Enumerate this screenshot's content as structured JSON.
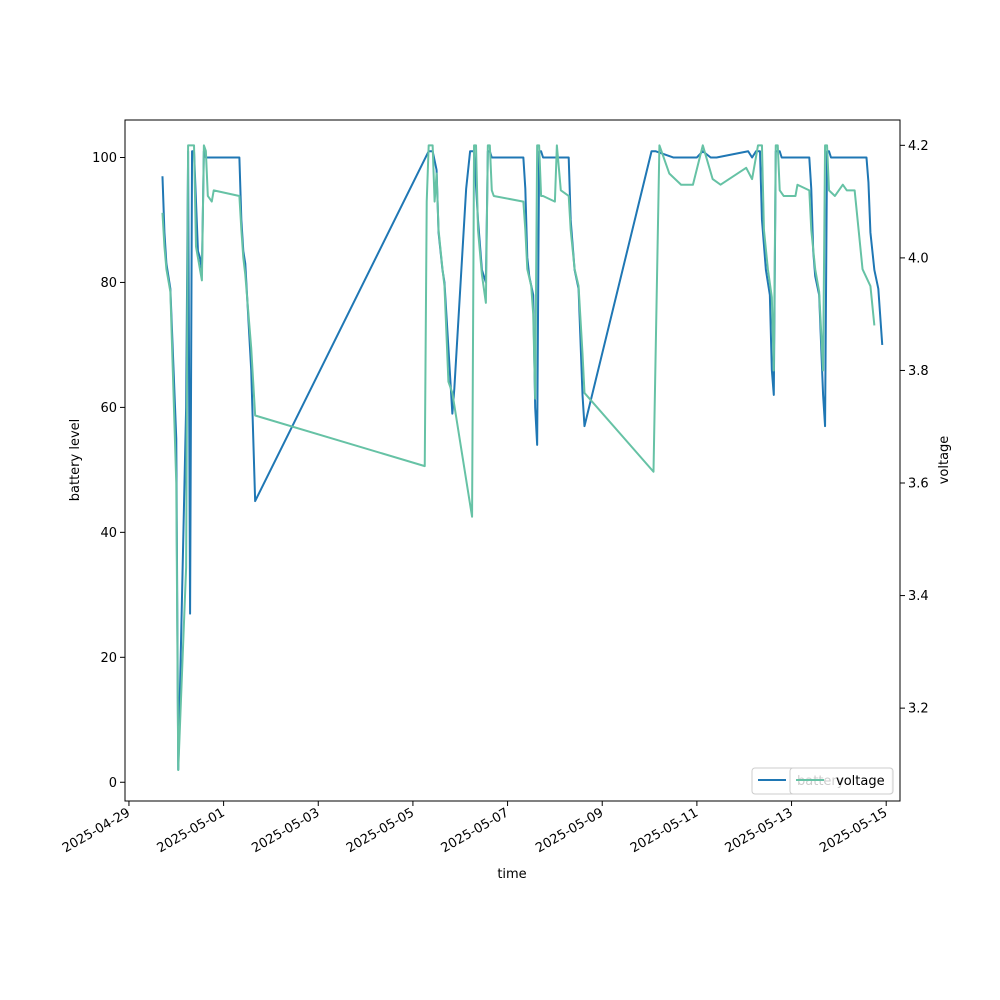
{
  "chart_data": {
    "type": "line",
    "title": "",
    "xlabel": "time",
    "ylabel_left": "battery level",
    "ylabel_right": "voltage",
    "x_range": [
      "2025-04-28T22:00",
      "2025-05-15T07:00"
    ],
    "x_ticks": [
      "2025-04-29",
      "2025-05-01",
      "2025-05-03",
      "2025-05-05",
      "2025-05-07",
      "2025-05-09",
      "2025-05-11",
      "2025-05-13",
      "2025-05-15"
    ],
    "ylim_left": [
      -3,
      106
    ],
    "yticks_left": [
      0,
      20,
      40,
      60,
      80,
      100
    ],
    "ylim_right": [
      3.035,
      4.245
    ],
    "yticks_right": [
      3.2,
      3.4,
      3.6,
      3.8,
      4.0,
      4.2
    ],
    "legend_position": "lower right",
    "series": [
      {
        "name": "battery",
        "axis": "left",
        "color": "#1f77b4",
        "points": [
          [
            "2025-04-29T17:00",
            97
          ],
          [
            "2025-04-29T18:00",
            88
          ],
          [
            "2025-04-29T19:00",
            83
          ],
          [
            "2025-04-29T21:00",
            79
          ],
          [
            "2025-04-30T00:00",
            55
          ],
          [
            "2025-04-30T01:00",
            2
          ],
          [
            "2025-04-30T05:00",
            60
          ],
          [
            "2025-04-30T06:00",
            101
          ],
          [
            "2025-04-30T07:00",
            27
          ],
          [
            "2025-04-30T08:00",
            101
          ],
          [
            "2025-04-30T09:00",
            101
          ],
          [
            "2025-04-30T11:00",
            85
          ],
          [
            "2025-04-30T12:00",
            84
          ],
          [
            "2025-04-30T13:00",
            82
          ],
          [
            "2025-04-30T14:00",
            101
          ],
          [
            "2025-04-30T15:00",
            100
          ],
          [
            "2025-04-30T16:00",
            100
          ],
          [
            "2025-05-01T08:00",
            100
          ],
          [
            "2025-05-01T09:00",
            90
          ],
          [
            "2025-05-01T10:00",
            85
          ],
          [
            "2025-05-01T11:00",
            83
          ],
          [
            "2025-05-01T14:00",
            66
          ],
          [
            "2025-05-01T16:00",
            45
          ],
          [
            "2025-05-05T08:00",
            101
          ],
          [
            "2025-05-05T10:00",
            101
          ],
          [
            "2025-05-05T12:00",
            98
          ],
          [
            "2025-05-05T13:00",
            88
          ],
          [
            "2025-05-05T15:00",
            82
          ],
          [
            "2025-05-05T16:00",
            80
          ],
          [
            "2025-05-05T20:00",
            59
          ],
          [
            "2025-05-05T21:00",
            63
          ],
          [
            "2025-05-06T03:00",
            95
          ],
          [
            "2025-05-06T05:00",
            101
          ],
          [
            "2025-05-06T07:00",
            101
          ],
          [
            "2025-05-06T09:00",
            90
          ],
          [
            "2025-05-06T11:00",
            82
          ],
          [
            "2025-05-06T13:00",
            80
          ],
          [
            "2025-05-06T14:00",
            101
          ],
          [
            "2025-05-06T15:00",
            101
          ],
          [
            "2025-05-06T16:00",
            100
          ],
          [
            "2025-05-07T08:00",
            100
          ],
          [
            "2025-05-07T09:00",
            95
          ],
          [
            "2025-05-07T10:00",
            84
          ],
          [
            "2025-05-07T11:00",
            81
          ],
          [
            "2025-05-07T13:00",
            78
          ],
          [
            "2025-05-07T14:00",
            60
          ],
          [
            "2025-05-07T15:00",
            54
          ],
          [
            "2025-05-07T16:00",
            101
          ],
          [
            "2025-05-07T17:00",
            101
          ],
          [
            "2025-05-07T18:00",
            100
          ],
          [
            "2025-05-08T07:00",
            100
          ],
          [
            "2025-05-08T08:00",
            90
          ],
          [
            "2025-05-08T10:00",
            82
          ],
          [
            "2025-05-08T12:00",
            79
          ],
          [
            "2025-05-08T14:00",
            62
          ],
          [
            "2025-05-08T15:00",
            57
          ],
          [
            "2025-05-10T01:00",
            101
          ],
          [
            "2025-05-10T03:00",
            101
          ],
          [
            "2025-05-10T12:00",
            100
          ],
          [
            "2025-05-11T00:00",
            100
          ],
          [
            "2025-05-11T03:00",
            101
          ],
          [
            "2025-05-11T07:00",
            100
          ],
          [
            "2025-05-11T10:00",
            100
          ],
          [
            "2025-05-12T02:00",
            101
          ],
          [
            "2025-05-12T04:00",
            100
          ],
          [
            "2025-05-12T06:00",
            101
          ],
          [
            "2025-05-12T08:00",
            101
          ],
          [
            "2025-05-12T09:00",
            90
          ],
          [
            "2025-05-12T11:00",
            82
          ],
          [
            "2025-05-12T13:00",
            78
          ],
          [
            "2025-05-12T14:00",
            66
          ],
          [
            "2025-05-12T15:00",
            62
          ],
          [
            "2025-05-12T16:00",
            101
          ],
          [
            "2025-05-12T18:00",
            101
          ],
          [
            "2025-05-12T19:00",
            100
          ],
          [
            "2025-05-13T09:00",
            100
          ],
          [
            "2025-05-13T10:00",
            95
          ],
          [
            "2025-05-13T11:00",
            85
          ],
          [
            "2025-05-13T12:00",
            81
          ],
          [
            "2025-05-13T14:00",
            78
          ],
          [
            "2025-05-13T16:00",
            62
          ],
          [
            "2025-05-13T17:00",
            57
          ],
          [
            "2025-05-13T18:00",
            101
          ],
          [
            "2025-05-13T19:00",
            101
          ],
          [
            "2025-05-13T20:00",
            100
          ],
          [
            "2025-05-14T14:00",
            100
          ],
          [
            "2025-05-14T15:00",
            96
          ],
          [
            "2025-05-14T16:00",
            88
          ],
          [
            "2025-05-14T18:00",
            82
          ],
          [
            "2025-05-14T20:00",
            79
          ],
          [
            "2025-05-14T22:00",
            70
          ]
        ]
      },
      {
        "name": "voltage",
        "axis": "right",
        "color": "#66c2a5",
        "points": [
          [
            "2025-04-29T17:00",
            4.08
          ],
          [
            "2025-04-29T18:00",
            4.02
          ],
          [
            "2025-04-29T19:00",
            3.98
          ],
          [
            "2025-04-29T21:00",
            3.94
          ],
          [
            "2025-04-30T00:00",
            3.6
          ],
          [
            "2025-04-30T01:00",
            3.09
          ],
          [
            "2025-04-30T05:00",
            3.45
          ],
          [
            "2025-04-30T06:00",
            4.2
          ],
          [
            "2025-04-30T08:00",
            4.2
          ],
          [
            "2025-04-30T09:00",
            4.2
          ],
          [
            "2025-04-30T10:00",
            4.02
          ],
          [
            "2025-04-30T11:00",
            4.0
          ],
          [
            "2025-04-30T13:00",
            3.96
          ],
          [
            "2025-04-30T14:00",
            4.2
          ],
          [
            "2025-04-30T15:00",
            4.19
          ],
          [
            "2025-04-30T16:00",
            4.11
          ],
          [
            "2025-04-30T18:00",
            4.1
          ],
          [
            "2025-04-30T19:00",
            4.12
          ],
          [
            "2025-05-01T08:00",
            4.11
          ],
          [
            "2025-05-01T09:00",
            4.05
          ],
          [
            "2025-05-01T10:00",
            4.0
          ],
          [
            "2025-05-01T11:00",
            3.97
          ],
          [
            "2025-05-01T14:00",
            3.84
          ],
          [
            "2025-05-01T16:00",
            3.72
          ],
          [
            "2025-05-05T06:00",
            3.63
          ],
          [
            "2025-05-05T07:00",
            4.1
          ],
          [
            "2025-05-05T08:00",
            4.2
          ],
          [
            "2025-05-05T10:00",
            4.2
          ],
          [
            "2025-05-05T11:00",
            4.1
          ],
          [
            "2025-05-05T12:00",
            4.15
          ],
          [
            "2025-05-05T13:00",
            4.05
          ],
          [
            "2025-05-05T15:00",
            3.98
          ],
          [
            "2025-05-05T16:00",
            3.95
          ],
          [
            "2025-05-05T18:00",
            3.78
          ],
          [
            "2025-05-05T20:00",
            3.76
          ],
          [
            "2025-05-06T06:00",
            3.54
          ],
          [
            "2025-05-06T07:00",
            4.2
          ],
          [
            "2025-05-06T08:00",
            4.2
          ],
          [
            "2025-05-06T09:00",
            4.05
          ],
          [
            "2025-05-06T11:00",
            3.97
          ],
          [
            "2025-05-06T13:00",
            3.92
          ],
          [
            "2025-05-06T14:00",
            4.2
          ],
          [
            "2025-05-06T15:00",
            4.2
          ],
          [
            "2025-05-06T16:00",
            4.12
          ],
          [
            "2025-05-06T17:00",
            4.11
          ],
          [
            "2025-05-07T08:00",
            4.1
          ],
          [
            "2025-05-07T09:00",
            4.05
          ],
          [
            "2025-05-07T10:00",
            3.98
          ],
          [
            "2025-05-07T12:00",
            3.95
          ],
          [
            "2025-05-07T13:00",
            3.9
          ],
          [
            "2025-05-07T14:00",
            3.75
          ],
          [
            "2025-05-07T15:00",
            4.2
          ],
          [
            "2025-05-07T16:00",
            4.2
          ],
          [
            "2025-05-07T17:00",
            4.11
          ],
          [
            "2025-05-07T18:00",
            4.11
          ],
          [
            "2025-05-08T00:00",
            4.1
          ],
          [
            "2025-05-08T01:00",
            4.2
          ],
          [
            "2025-05-08T03:00",
            4.12
          ],
          [
            "2025-05-08T07:00",
            4.11
          ],
          [
            "2025-05-08T08:00",
            4.05
          ],
          [
            "2025-05-08T10:00",
            3.98
          ],
          [
            "2025-05-08T12:00",
            3.95
          ],
          [
            "2025-05-08T14:00",
            3.83
          ],
          [
            "2025-05-08T15:00",
            3.76
          ],
          [
            "2025-05-10T02:00",
            3.62
          ],
          [
            "2025-05-10T05:00",
            4.2
          ],
          [
            "2025-05-10T10:00",
            4.15
          ],
          [
            "2025-05-10T16:00",
            4.13
          ],
          [
            "2025-05-10T22:00",
            4.13
          ],
          [
            "2025-05-11T03:00",
            4.2
          ],
          [
            "2025-05-11T08:00",
            4.14
          ],
          [
            "2025-05-11T12:00",
            4.13
          ],
          [
            "2025-05-12T01:00",
            4.16
          ],
          [
            "2025-05-12T04:00",
            4.14
          ],
          [
            "2025-05-12T07:00",
            4.2
          ],
          [
            "2025-05-12T09:00",
            4.2
          ],
          [
            "2025-05-12T10:00",
            4.05
          ],
          [
            "2025-05-12T12:00",
            3.98
          ],
          [
            "2025-05-12T14:00",
            3.93
          ],
          [
            "2025-05-12T15:00",
            3.8
          ],
          [
            "2025-05-12T16:00",
            4.2
          ],
          [
            "2025-05-12T17:00",
            4.2
          ],
          [
            "2025-05-12T18:00",
            4.12
          ],
          [
            "2025-05-12T20:00",
            4.11
          ],
          [
            "2025-05-13T02:00",
            4.11
          ],
          [
            "2025-05-13T03:00",
            4.13
          ],
          [
            "2025-05-13T09:00",
            4.12
          ],
          [
            "2025-05-13T10:00",
            4.05
          ],
          [
            "2025-05-13T12:00",
            3.98
          ],
          [
            "2025-05-13T14:00",
            3.94
          ],
          [
            "2025-05-13T16:00",
            3.8
          ],
          [
            "2025-05-13T17:00",
            4.2
          ],
          [
            "2025-05-13T18:00",
            4.2
          ],
          [
            "2025-05-13T19:00",
            4.12
          ],
          [
            "2025-05-13T22:00",
            4.11
          ],
          [
            "2025-05-14T02:00",
            4.13
          ],
          [
            "2025-05-14T04:00",
            4.12
          ],
          [
            "2025-05-14T08:00",
            4.12
          ],
          [
            "2025-05-14T10:00",
            4.05
          ],
          [
            "2025-05-14T12:00",
            3.98
          ],
          [
            "2025-05-14T16:00",
            3.95
          ],
          [
            "2025-05-14T18:00",
            3.88
          ]
        ]
      }
    ]
  }
}
